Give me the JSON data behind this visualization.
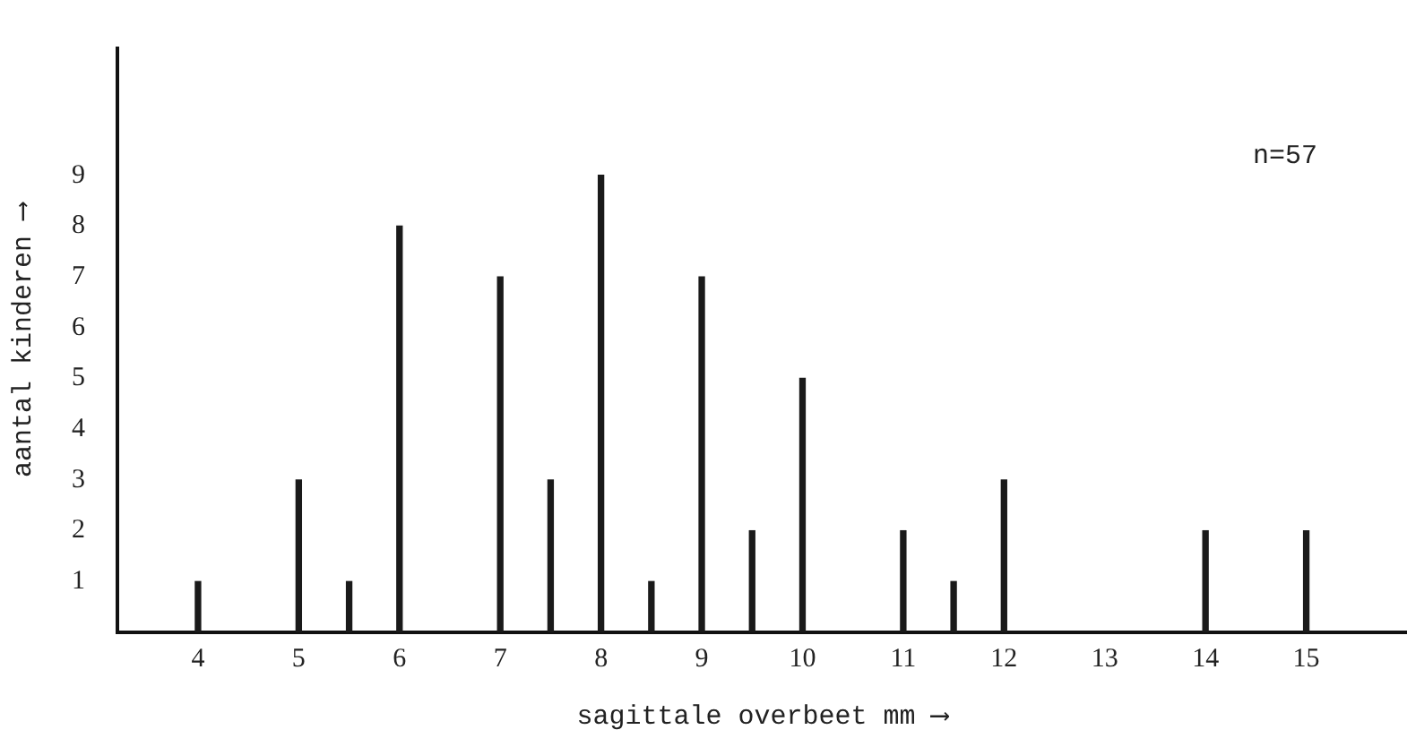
{
  "chart_data": {
    "type": "bar",
    "xlabel": "sagittale overbeet mm ⟶",
    "ylabel": "aantal kinderen ⟶",
    "x": [
      4,
      5,
      5.5,
      6,
      7,
      7.5,
      8,
      8.5,
      9,
      9.5,
      10,
      11,
      11.5,
      12,
      14,
      15
    ],
    "values": [
      1,
      3,
      1,
      8,
      7,
      3,
      9,
      1,
      7,
      2,
      5,
      2,
      1,
      3,
      2,
      2
    ],
    "color": "#1a1a1a",
    "xlim": [
      3.2,
      16
    ],
    "xticks": [
      4,
      5,
      6,
      7,
      8,
      9,
      10,
      11,
      12,
      13,
      14,
      15
    ],
    "ylim": [
      0,
      11.5
    ],
    "yticks": [
      1,
      2,
      3,
      4,
      5,
      6,
      7,
      8,
      9
    ],
    "grid": false,
    "legend": false,
    "annotations": [
      "n=57"
    ]
  }
}
